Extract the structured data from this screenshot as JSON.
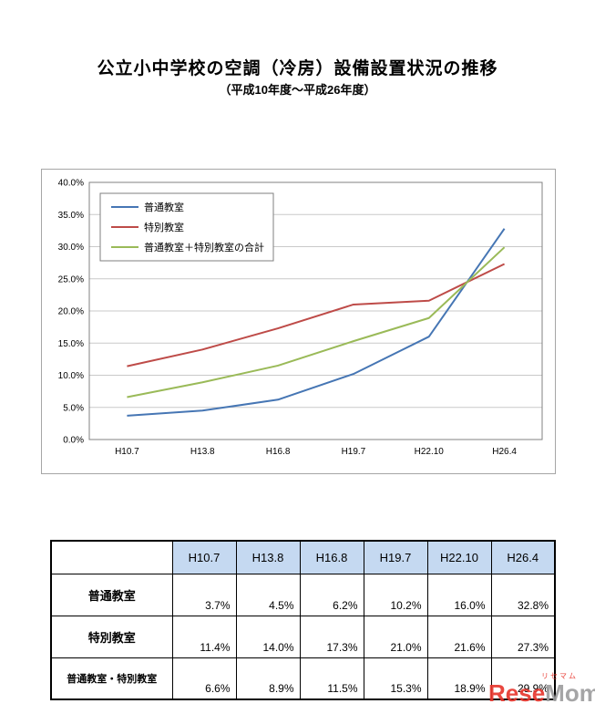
{
  "page": {
    "title": "公立小中学校の空調（冷房）設備設置状況の推移",
    "subtitle": "（平成10年度～平成26年度）"
  },
  "chart_data": {
    "type": "line",
    "categories": [
      "H10.7",
      "H13.8",
      "H16.8",
      "H19.7",
      "H22.10",
      "H26.4"
    ],
    "series": [
      {
        "name": "普通教室",
        "color": "#4676b4",
        "values": [
          3.7,
          4.5,
          6.2,
          10.2,
          16.0,
          32.8
        ]
      },
      {
        "name": "特別教室",
        "color": "#be4b48",
        "values": [
          11.4,
          14.0,
          17.3,
          21.0,
          21.6,
          27.3
        ]
      },
      {
        "name": "普通教室＋特別教室の合計",
        "color": "#9aba58",
        "values": [
          6.6,
          8.9,
          11.5,
          15.3,
          18.9,
          29.9
        ]
      }
    ],
    "ylim": [
      0,
      40
    ],
    "ytick_step": 5,
    "ytick_labels": [
      "0.0%",
      "5.0%",
      "10.0%",
      "15.0%",
      "20.0%",
      "25.0%",
      "30.0%",
      "35.0%",
      "40.0%"
    ],
    "grid": true,
    "legend_position": "top-left-inside",
    "colors": {
      "gridline": "#c9c9c9",
      "plot_border": "#808080",
      "legend_border": "#7f7f7f"
    }
  },
  "table": {
    "col_headers": [
      "",
      "H10.7",
      "H13.8",
      "H16.8",
      "H19.7",
      "H22.10",
      "H26.4"
    ],
    "rows": [
      {
        "label": "普通教室",
        "values": [
          "3.7%",
          "4.5%",
          "6.2%",
          "10.2%",
          "16.0%",
          "32.8%"
        ]
      },
      {
        "label": "特別教室",
        "values": [
          "11.4%",
          "14.0%",
          "17.3%",
          "21.0%",
          "21.6%",
          "27.3%"
        ]
      },
      {
        "label": "普通教室・特別教室",
        "values": [
          "6.6%",
          "8.9%",
          "11.5%",
          "15.3%",
          "18.9%",
          "29.9%"
        ]
      }
    ]
  },
  "watermark": {
    "kana": "リセマム",
    "part1": "Rese",
    "part2": "Mom",
    "colors": {
      "part1": "#e8382f",
      "part2": "#9e9e9f"
    }
  }
}
